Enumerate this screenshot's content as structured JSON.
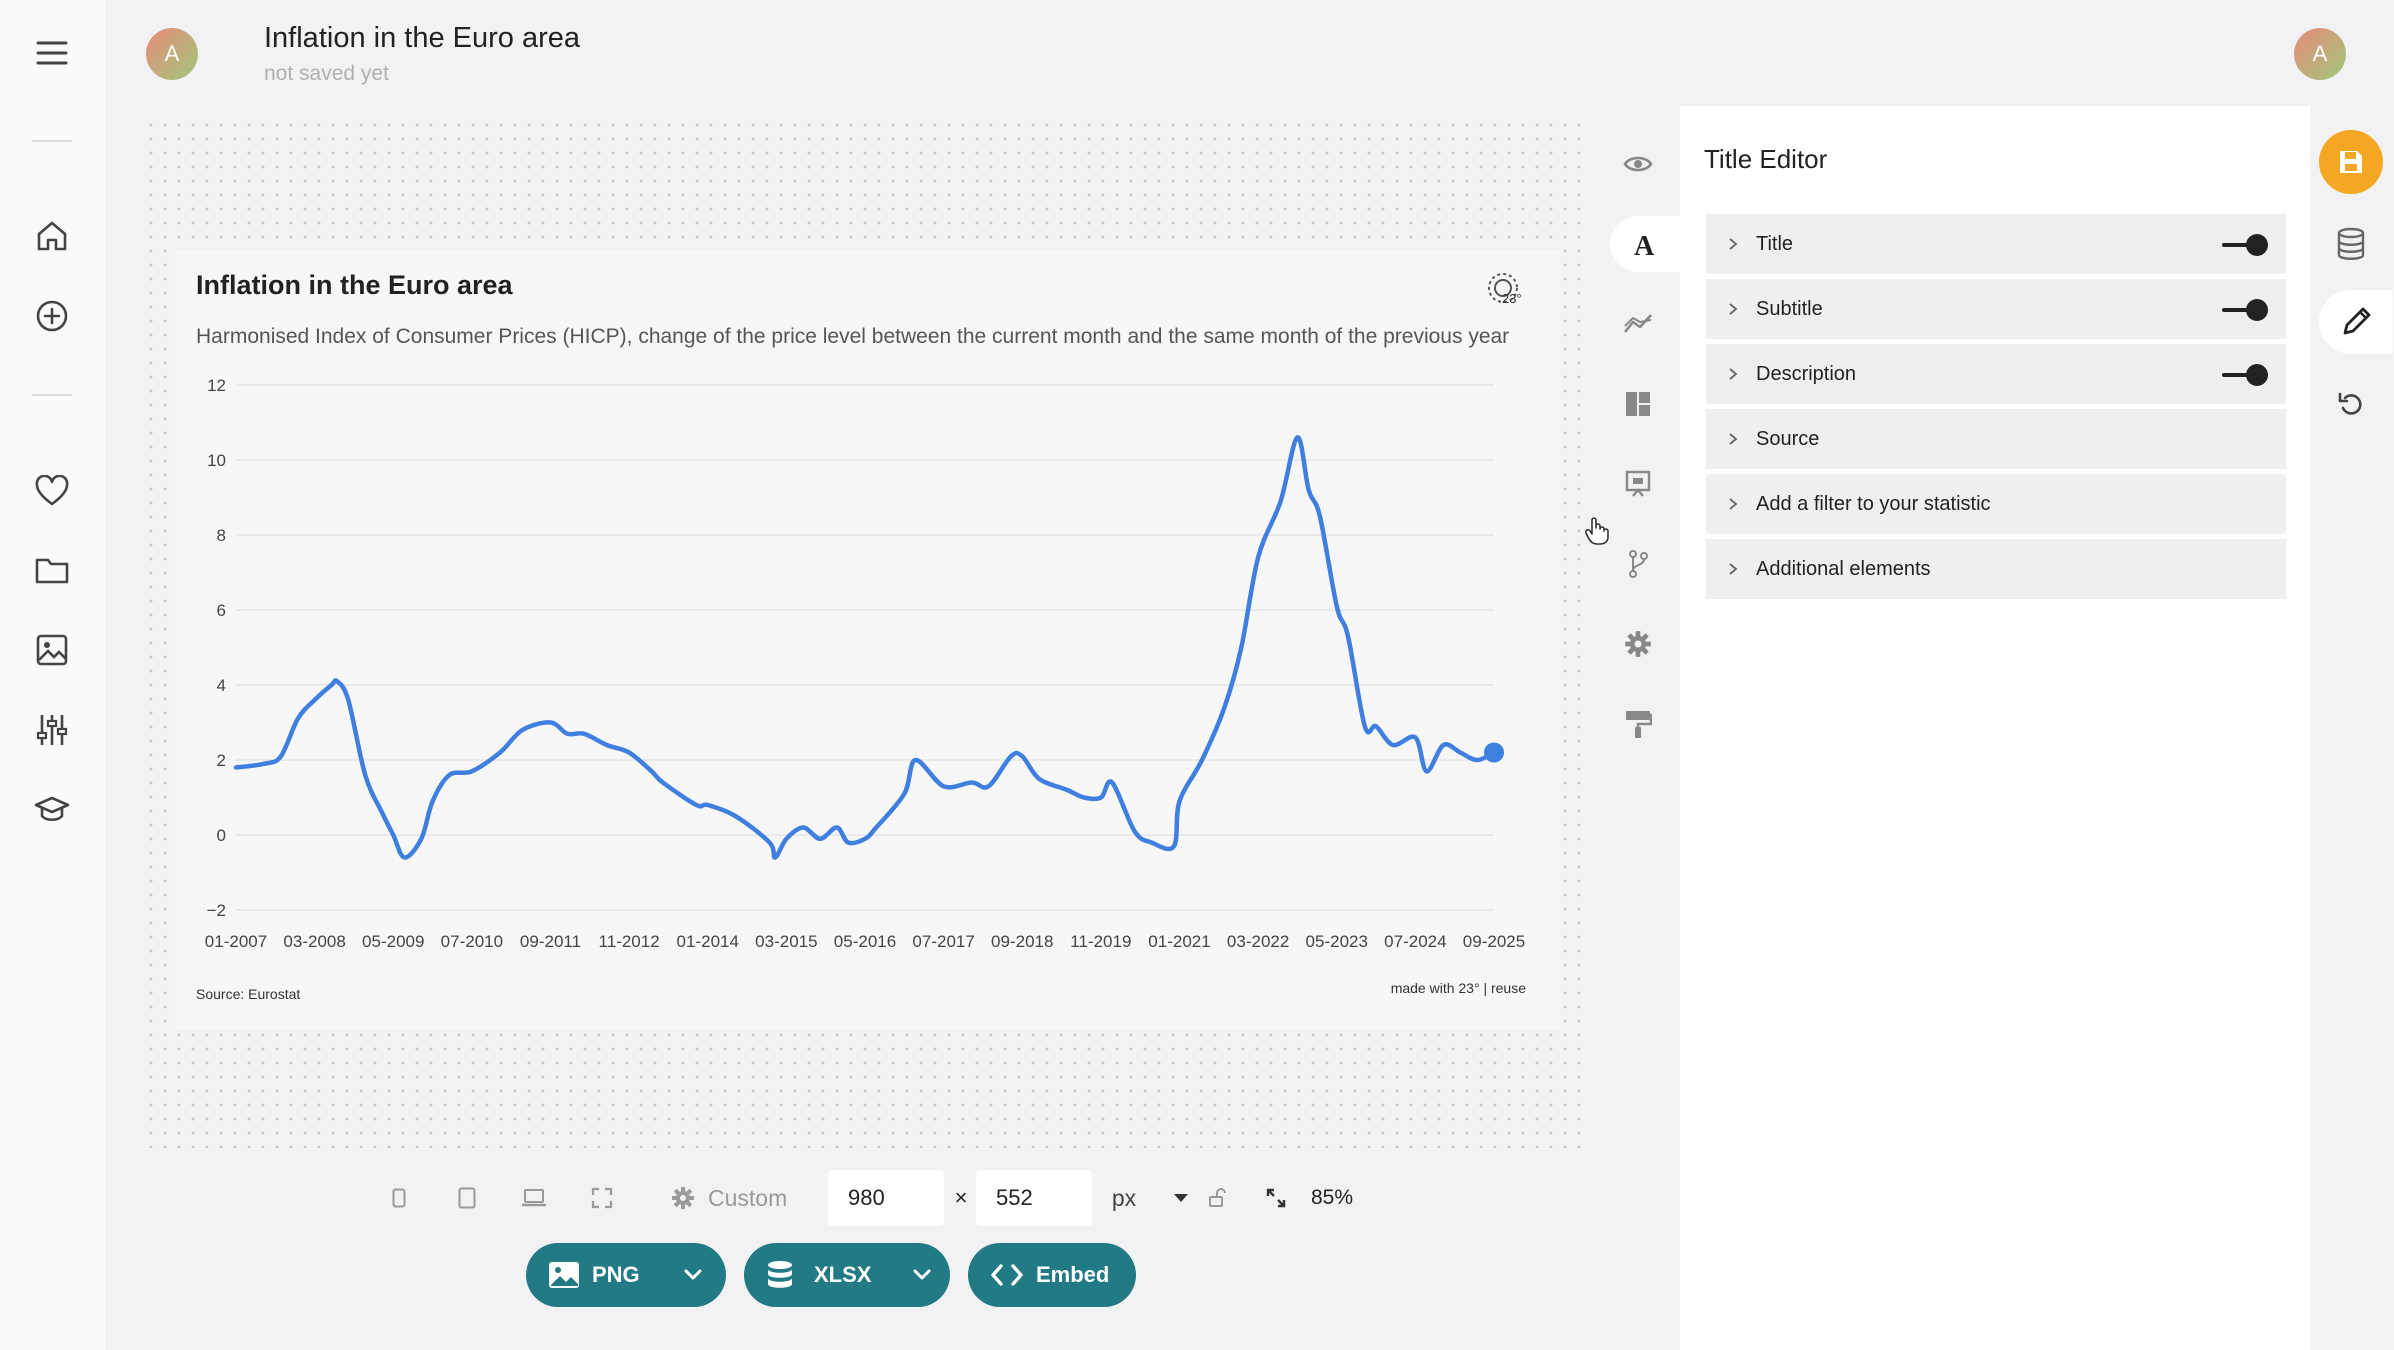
{
  "header": {
    "avatar_letter": "A",
    "title": "Inflation in the Euro area",
    "status": "not saved yet",
    "user_avatar_letter": "A"
  },
  "chart": {
    "title": "Inflation in the Euro area",
    "subtitle": "Harmonised Index of Consumer Prices (HICP), change of the price level between the current month and the same month of the previous year",
    "source": "Source: Eurostat",
    "credit": "made with 23° | reuse"
  },
  "chart_data": {
    "type": "line",
    "title": "Inflation in the Euro area",
    "subtitle": "Harmonised Index of Consumer Prices (HICP), change of the price level between the current month and the same month of the previous year",
    "xlabel": "",
    "ylabel": "",
    "ylim": [
      -2,
      12
    ],
    "yticks": [
      -2,
      0,
      2,
      4,
      6,
      8,
      10,
      12
    ],
    "xticks": [
      "01-2007",
      "03-2008",
      "05-2009",
      "07-2010",
      "09-2011",
      "11-2012",
      "01-2014",
      "03-2015",
      "05-2016",
      "07-2017",
      "09-2018",
      "11-2019",
      "01-2021",
      "03-2022",
      "05-2023",
      "07-2024",
      "09-2025"
    ],
    "grid": true,
    "color": "#3e7fe0",
    "series": [
      {
        "x": [
          "01-2007",
          "06-2007",
          "09-2007",
          "12-2007",
          "03-2008",
          "06-2008",
          "07-2008",
          "09-2008",
          "12-2008",
          "03-2009",
          "05-2009",
          "07-2009",
          "10-2009",
          "12-2009",
          "03-2010",
          "07-2010",
          "12-2010",
          "04-2011",
          "09-2011",
          "12-2011",
          "03-2012",
          "07-2012",
          "11-2012",
          "03-2013",
          "05-2013",
          "11-2013",
          "01-2014",
          "06-2014",
          "12-2014",
          "01-2015",
          "03-2015",
          "06-2015",
          "09-2015",
          "12-2015",
          "02-2016",
          "05-2016",
          "07-2016",
          "12-2016",
          "02-2017",
          "07-2017",
          "12-2017",
          "03-2018",
          "07-2018",
          "09-2018",
          "12-2018",
          "05-2019",
          "08-2019",
          "11-2019",
          "01-2020",
          "05-2020",
          "08-2020",
          "12-2020",
          "01-2021",
          "05-2021",
          "09-2021",
          "12-2021",
          "03-2022",
          "07-2022",
          "10-2022",
          "12-2022",
          "02-2023",
          "05-2023",
          "07-2023",
          "10-2023",
          "12-2023",
          "03-2024",
          "07-2024",
          "09-2024",
          "12-2024",
          "03-2025",
          "06-2025",
          "09-2025"
        ],
        "y": [
          1.8,
          1.9,
          2.1,
          3.1,
          3.6,
          4.0,
          4.1,
          3.6,
          1.6,
          0.6,
          0.0,
          -0.6,
          -0.1,
          0.9,
          1.6,
          1.7,
          2.2,
          2.8,
          3.0,
          2.7,
          2.7,
          2.4,
          2.2,
          1.7,
          1.4,
          0.8,
          0.8,
          0.5,
          -0.2,
          -0.6,
          -0.1,
          0.2,
          -0.1,
          0.2,
          -0.2,
          -0.1,
          0.2,
          1.1,
          2.0,
          1.3,
          1.4,
          1.3,
          2.1,
          2.1,
          1.5,
          1.2,
          1.0,
          1.0,
          1.4,
          0.1,
          -0.2,
          -0.3,
          0.9,
          2.0,
          3.4,
          5.0,
          7.4,
          8.9,
          10.6,
          9.2,
          8.5,
          6.1,
          5.3,
          2.9,
          2.9,
          2.4,
          2.6,
          1.7,
          2.4,
          2.2,
          2.0,
          2.2
        ]
      }
    ]
  },
  "toolbar": {
    "preset_label": "Custom",
    "width": "980",
    "times": "×",
    "height": "552",
    "unit": "px",
    "zoom": "85%",
    "png_label": "PNG",
    "xlsx_label": "XLSX",
    "embed_label": "Embed"
  },
  "editor": {
    "title": "Title Editor",
    "rows": [
      {
        "label": "Title",
        "toggle": true
      },
      {
        "label": "Subtitle",
        "toggle": true
      },
      {
        "label": "Description",
        "toggle": true
      },
      {
        "label": "Source",
        "toggle": false
      },
      {
        "label": "Add a filter to your statistic",
        "toggle": false
      },
      {
        "label": "Additional elements",
        "toggle": false
      }
    ]
  },
  "colors": {
    "accent": "#227a84",
    "save": "#f5a623",
    "line": "#3e7fe0"
  }
}
